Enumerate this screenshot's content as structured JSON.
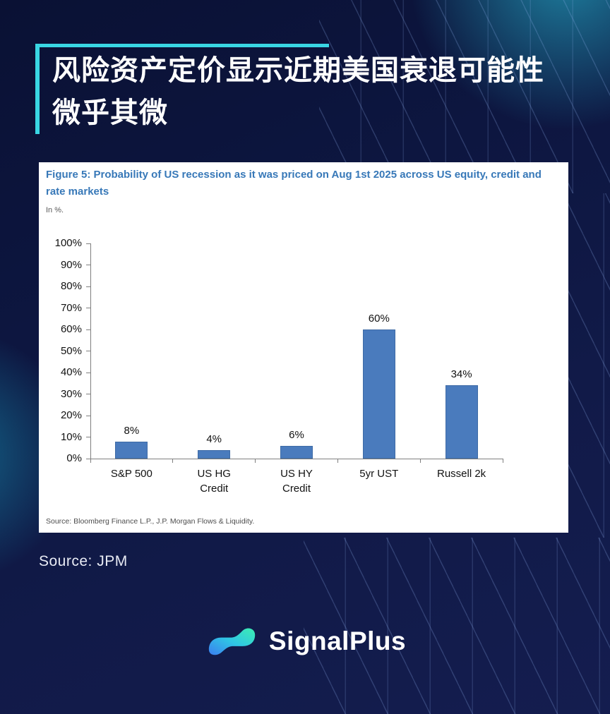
{
  "slide": {
    "title_line1": "风险资产定价显示近期美国衰退可能性",
    "title_line2": "微乎其微",
    "source_label": "Source: JPM",
    "accent_color": "#39d6e3",
    "background_color": "#0d1640"
  },
  "chart_data": {
    "type": "bar",
    "title": "Figure 5: Probability of US recession as it was priced on Aug 1st 2025 across US equity, credit and rate markets",
    "subtitle": "In %.",
    "categories": [
      "S&P 500",
      "US HG\nCredit",
      "US HY\nCredit",
      "5yr UST",
      "Russell 2k"
    ],
    "values": [
      8,
      4,
      6,
      60,
      34
    ],
    "value_labels": [
      "8%",
      "4%",
      "6%",
      "60%",
      "34%"
    ],
    "xlabel": "",
    "ylabel": "In %",
    "ylim": [
      0,
      100
    ],
    "ytick_step": 10,
    "ytick_suffix": "%",
    "grid": false,
    "legend": false,
    "bar_color": "#4a7bbd",
    "bar_border_color": "#3e6ba6",
    "source": "Source: Bloomberg Finance L.P., J.P. Morgan Flows & Liquidity."
  },
  "logo": {
    "text": "SignalPlus",
    "icon": "wave-icon",
    "gradient": [
      "#3b7ef0",
      "#2fc6e4",
      "#3ceeb2"
    ]
  }
}
